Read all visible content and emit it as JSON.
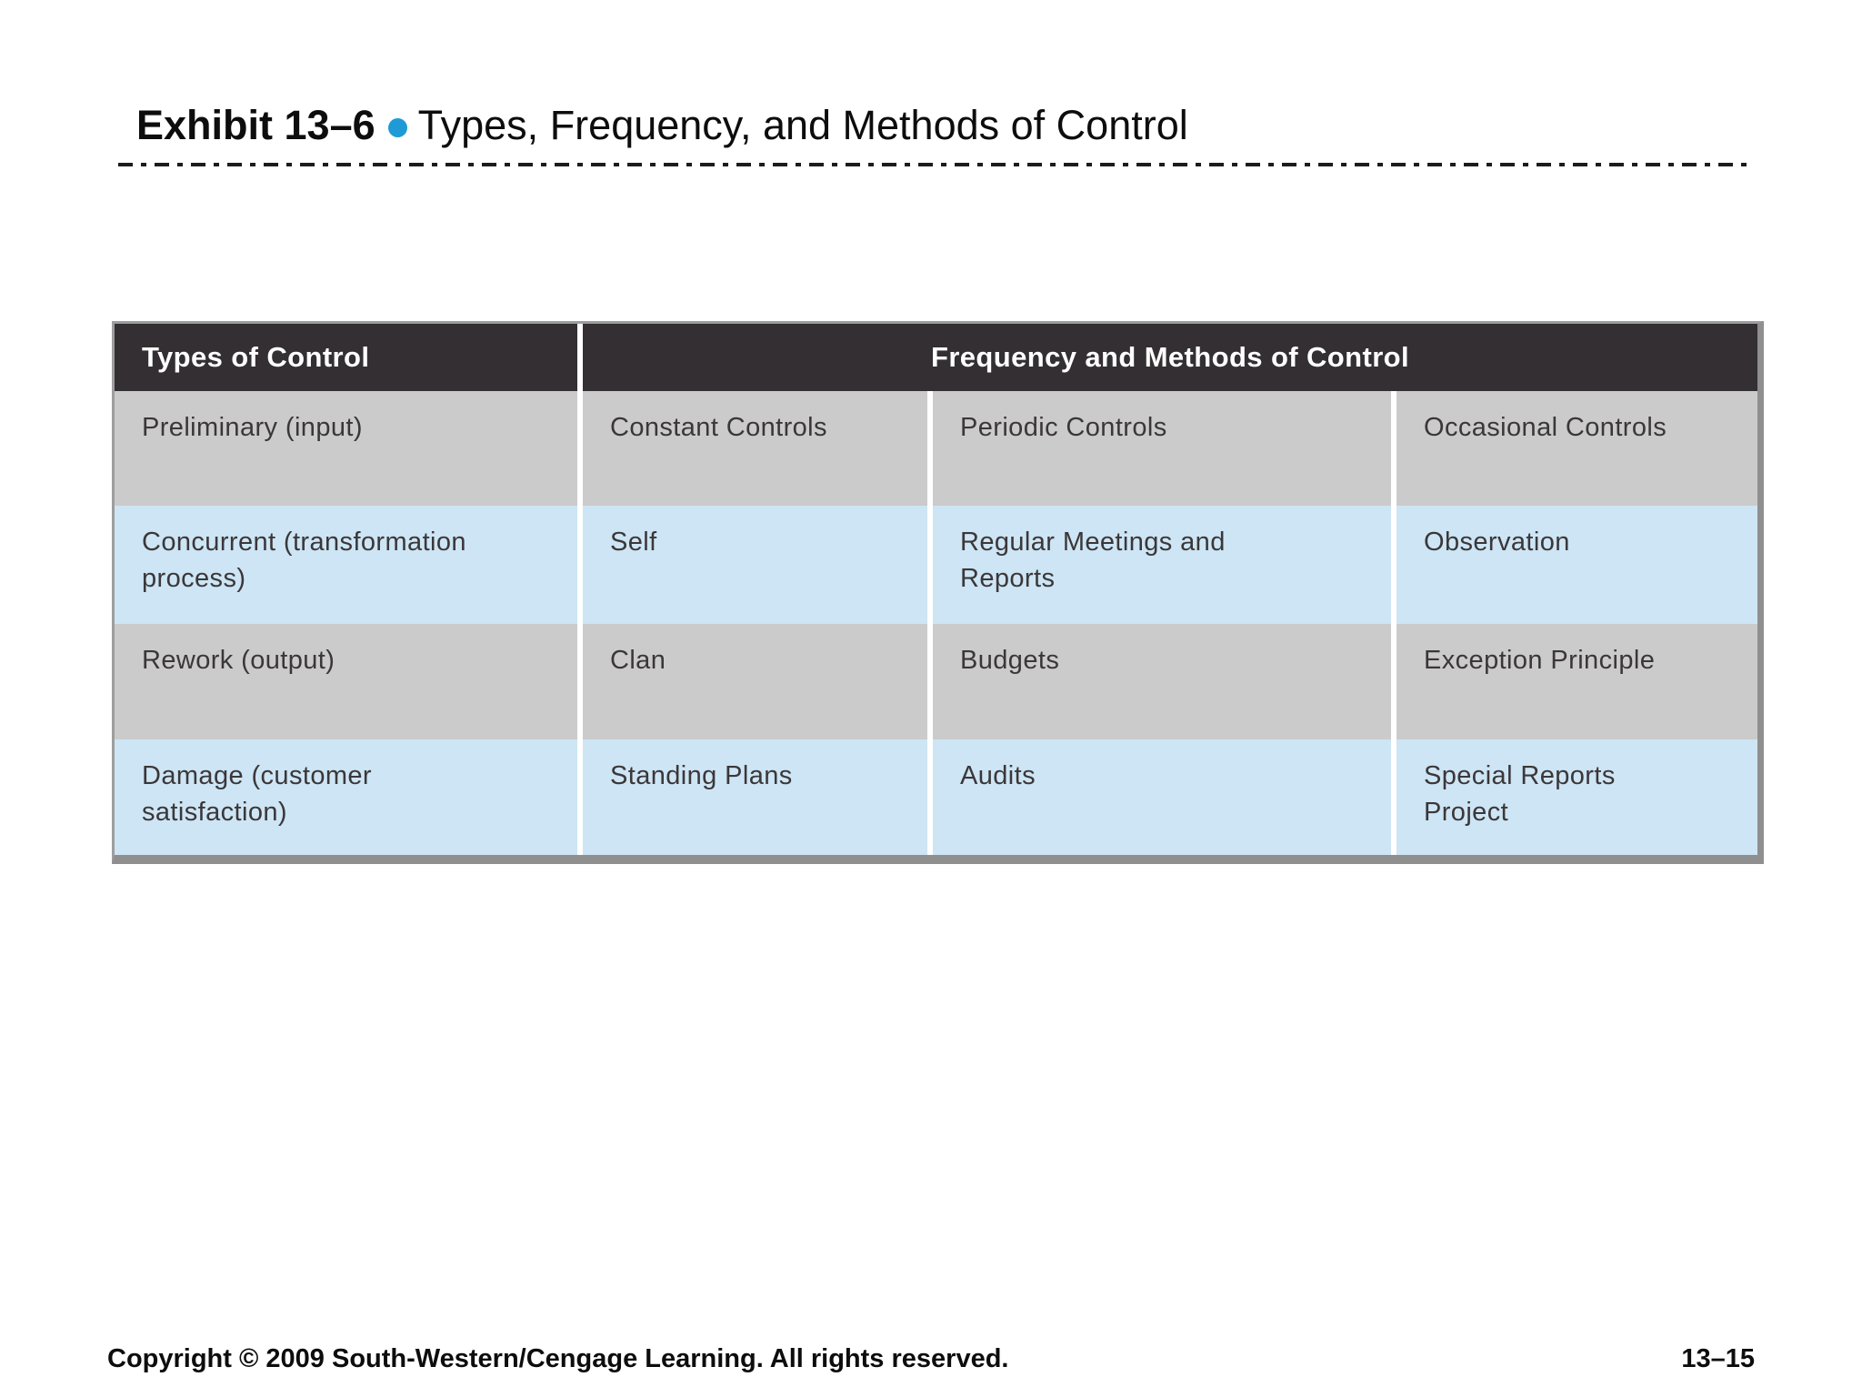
{
  "slide": {
    "title": {
      "exhibit_label": "Exhibit 13–6",
      "title_text": "Types, Frequency, and Methods of Control"
    },
    "footer": {
      "copyright": "Copyright © 2009 South-Western/Cengage Learning. All rights reserved.",
      "page_number": "13–15"
    }
  },
  "colors": {
    "accent_bullet": "#1e9bd7",
    "table_header_bg": "#332f32",
    "table_header_text": "#ffffff",
    "row_gray": "#cbcbcb",
    "row_blue": "#cde5f4",
    "table_shadow": "#8f8f8f"
  },
  "chart_data": {
    "type": "table",
    "title": "Exhibit 13–6 • Types, Frequency, and Methods of Control",
    "header": {
      "types_label": "Types of Control",
      "frequency_label": "Frequency and Methods of Control"
    },
    "rows": [
      {
        "cells": [
          "Preliminary (input)",
          "Constant Controls",
          "Periodic Controls",
          "Occasional Controls"
        ]
      },
      {
        "cells": [
          "Concurrent (transformation\nprocess)",
          "Self",
          "Regular Meetings and\nReports",
          "Observation"
        ]
      },
      {
        "cells": [
          "Rework (output)",
          "Clan",
          "Budgets",
          "Exception Principle"
        ]
      },
      {
        "cells": [
          "Damage (customer\nsatisfaction)",
          "Standing Plans",
          "Audits",
          "Special Reports\nProject"
        ]
      }
    ]
  }
}
